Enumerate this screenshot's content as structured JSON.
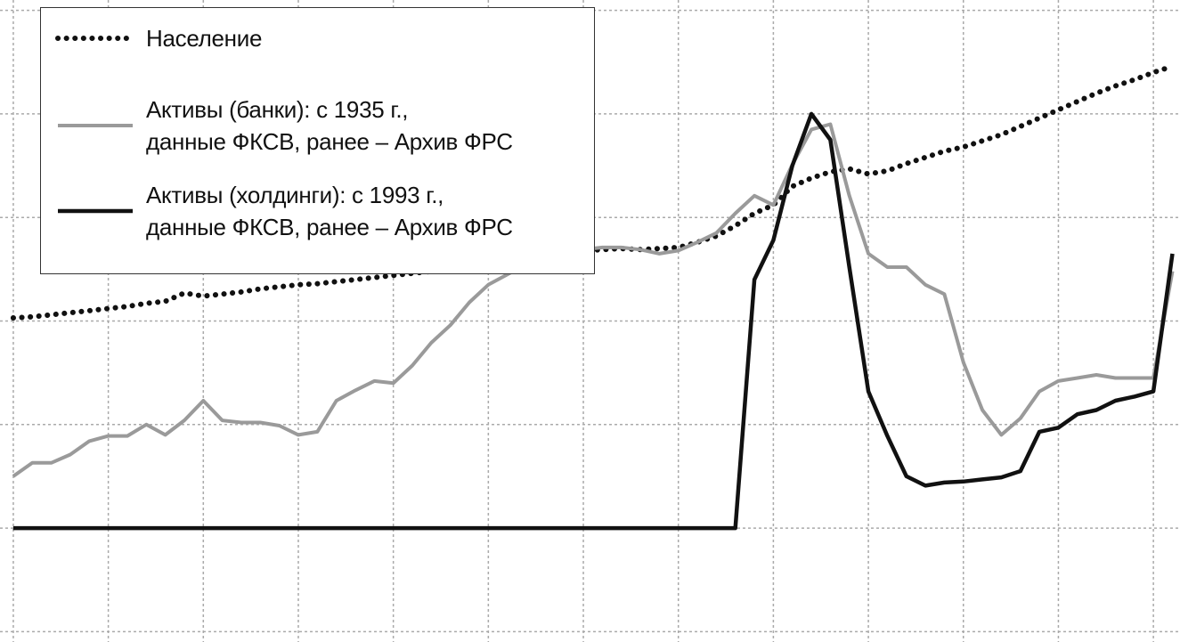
{
  "chart_data": {
    "type": "line",
    "x": [
      0,
      0.2,
      0.4,
      0.6,
      0.8,
      1.0,
      1.2,
      1.4,
      1.6,
      1.8,
      2.0,
      2.2,
      2.4,
      2.6,
      2.8,
      3.0,
      3.2,
      3.4,
      3.6,
      3.8,
      4.0,
      4.2,
      4.4,
      4.6,
      4.8,
      5.0,
      5.2,
      5.4,
      5.6,
      5.8,
      6.0,
      6.2,
      6.4,
      6.6,
      6.8,
      7.0,
      7.2,
      7.4,
      7.6,
      7.8,
      8.0,
      8.2,
      8.4,
      8.6,
      8.8,
      9.0,
      9.2,
      9.4,
      9.6,
      9.8,
      10.0,
      10.2,
      10.4,
      10.6,
      10.8,
      11.0,
      11.2,
      11.4,
      11.6,
      11.8,
      12.0,
      12.2
    ],
    "series": [
      {
        "name": "Население",
        "color": "#111111",
        "style": "dotted",
        "values": [
          3.03,
          3.04,
          3.06,
          3.08,
          3.1,
          3.12,
          3.14,
          3.17,
          3.19,
          3.27,
          3.24,
          3.26,
          3.28,
          3.31,
          3.33,
          3.35,
          3.36,
          3.38,
          3.4,
          3.42,
          3.44,
          3.46,
          3.48,
          3.5,
          3.52,
          3.55,
          3.58,
          3.61,
          3.64,
          3.66,
          3.68,
          3.69,
          3.7,
          3.69,
          3.7,
          3.71,
          3.76,
          3.82,
          3.92,
          4.04,
          4.12,
          4.3,
          4.38,
          4.44,
          4.47,
          4.42,
          4.45,
          4.52,
          4.58,
          4.64,
          4.68,
          4.74,
          4.8,
          4.88,
          4.96,
          5.04,
          5.12,
          5.2,
          5.27,
          5.33,
          5.4,
          5.46
        ]
      },
      {
        "name": "Активы (банки): с 1935 г.,\nданные ФКСВ, ранее – Архив ФРС",
        "color": "#9a9a9a",
        "style": "solid",
        "values": [
          1.5,
          1.63,
          1.63,
          1.71,
          1.84,
          1.89,
          1.89,
          2.0,
          1.9,
          2.04,
          2.23,
          2.04,
          2.02,
          2.02,
          1.99,
          1.9,
          1.93,
          2.23,
          2.33,
          2.42,
          2.4,
          2.57,
          2.79,
          2.96,
          3.18,
          3.35,
          3.45,
          3.55,
          3.62,
          3.66,
          3.69,
          3.71,
          3.71,
          3.69,
          3.65,
          3.68,
          3.76,
          3.85,
          4.04,
          4.21,
          4.12,
          4.51,
          4.85,
          4.9,
          4.21,
          3.65,
          3.52,
          3.52,
          3.35,
          3.26,
          2.6,
          2.14,
          1.9,
          2.06,
          2.32,
          2.42,
          2.45,
          2.48,
          2.45,
          2.45,
          2.45,
          3.48
        ]
      },
      {
        "name": "Активы (холдинги): с 1993 г.,\nданные ФКСВ, ранее – Архив ФРС",
        "color": "#111111",
        "style": "solid",
        "values": [
          1.0,
          1.0,
          1.0,
          1.0,
          1.0,
          1.0,
          1.0,
          1.0,
          1.0,
          1.0,
          1.0,
          1.0,
          1.0,
          1.0,
          1.0,
          1.0,
          1.0,
          1.0,
          1.0,
          1.0,
          1.0,
          1.0,
          1.0,
          1.0,
          1.0,
          1.0,
          1.0,
          1.0,
          1.0,
          1.0,
          1.0,
          1.0,
          1.0,
          1.0,
          1.0,
          1.0,
          1.0,
          1.0,
          1.0,
          3.4,
          3.78,
          4.5,
          5.0,
          4.75,
          3.52,
          2.32,
          1.89,
          1.5,
          1.41,
          1.44,
          1.45,
          1.47,
          1.49,
          1.55,
          1.93,
          1.97,
          2.1,
          2.14,
          2.23,
          2.27,
          2.32,
          3.65
        ]
      }
    ],
    "xlim": [
      -0.14,
      12.28
    ],
    "ylim": [
      -0.1,
      6.1
    ],
    "xticks": [
      0,
      1,
      2,
      3,
      4,
      5,
      6,
      7,
      8,
      9,
      10,
      11,
      12
    ],
    "yticks": [
      0,
      1,
      2,
      3,
      4,
      5,
      6
    ],
    "grid": true,
    "legend": "upper left"
  }
}
